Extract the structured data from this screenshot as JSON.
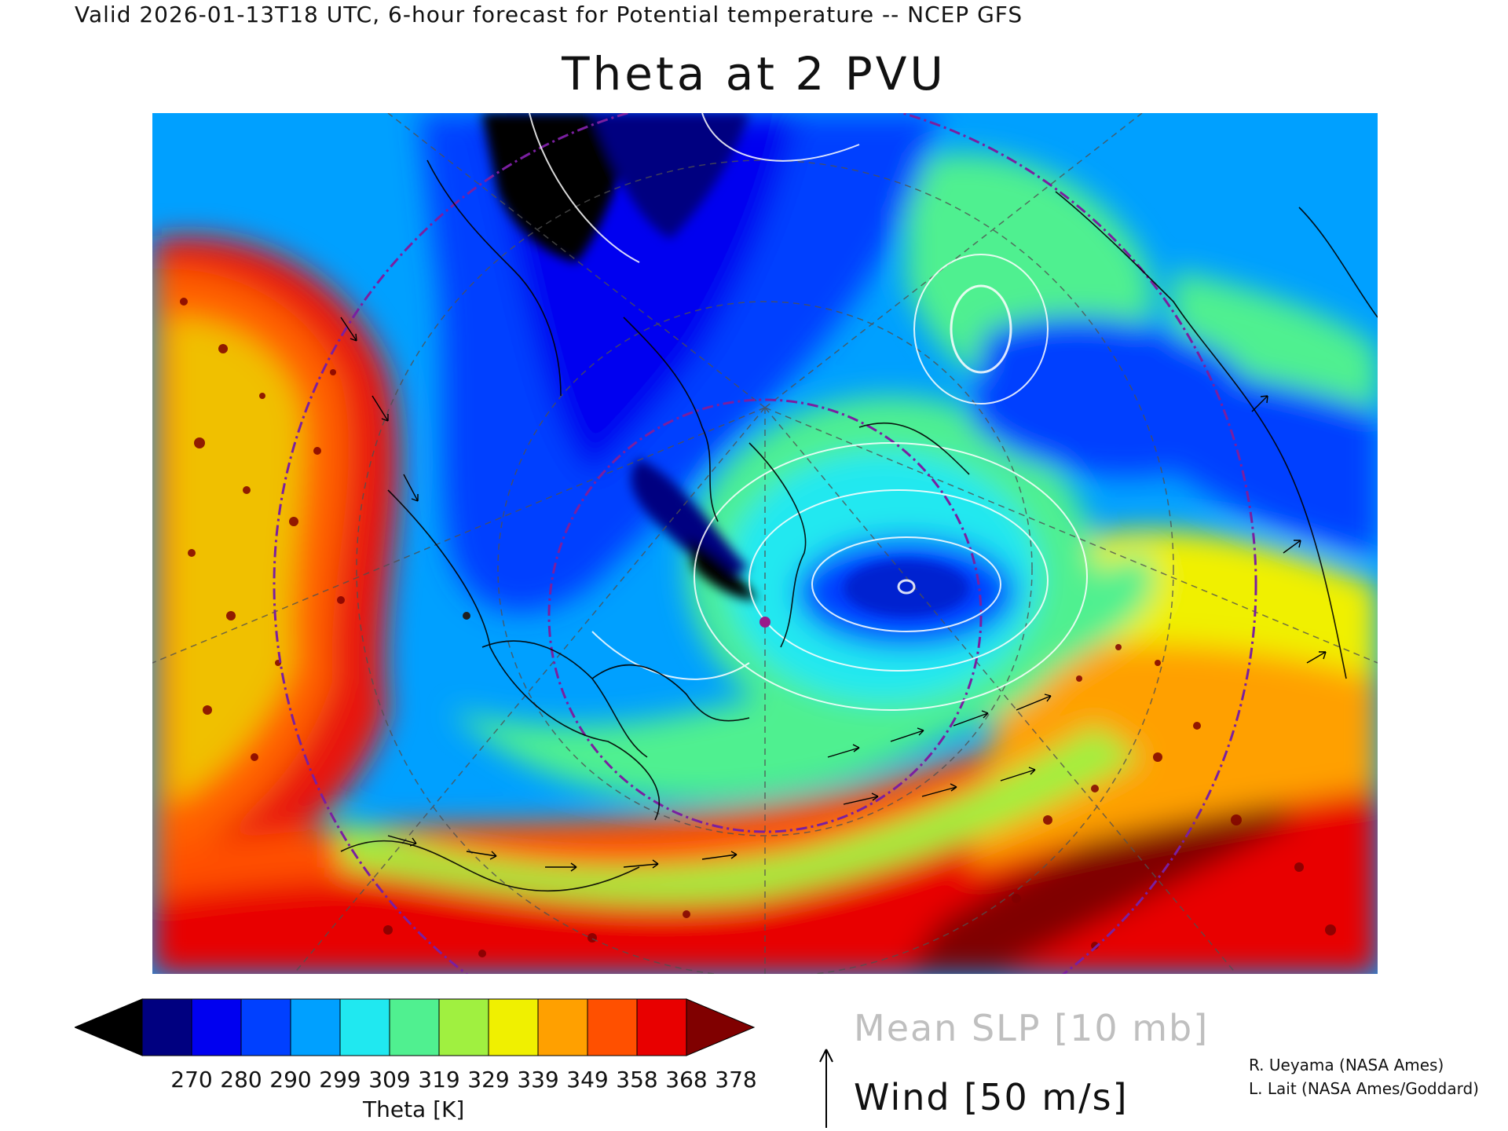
{
  "header": {
    "subtitle": "Valid 2026-01-13T18 UTC, 6-hour forecast for Potential temperature -- NCEP GFS",
    "title": "Theta at 2 PVU"
  },
  "colorbar": {
    "colors": [
      "#000000",
      "#000080",
      "#0000f0",
      "#0040ff",
      "#00a0ff",
      "#20e8f0",
      "#50f090",
      "#a0f040",
      "#f0f000",
      "#ffa000",
      "#ff5000",
      "#e80000",
      "#800000"
    ],
    "tick_labels": [
      "270",
      "280",
      "290",
      "299",
      "309",
      "319",
      "329",
      "339",
      "349",
      "358",
      "368",
      "378"
    ],
    "units_label": "Theta [K]"
  },
  "legend": {
    "slp_label": "Mean SLP [10 mb]",
    "wind_label": "Wind [50 m/s]",
    "slp_color": "#bfbfbf",
    "wind_vector_icon": "arrow-up-icon"
  },
  "credits": {
    "line1": "R. Ueyama (NASA Ames)",
    "line2": "L. Lait (NASA Ames/Goddard)"
  },
  "map": {
    "projection": "polar stereographic (Northern Hemisphere)",
    "field": "Potential temperature at 2 PVU",
    "overlays": [
      "Mean SLP contours",
      "Wind vectors",
      "Coastlines and borders",
      "Latitude/longitude grid"
    ],
    "contour_color": "#ffffff",
    "graticule_circle_color": "#7a1fa0",
    "marker_color": "#9a1a8a"
  }
}
